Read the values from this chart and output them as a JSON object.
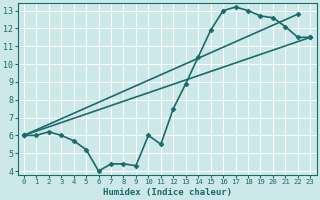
{
  "title": "",
  "xlabel": "Humidex (Indice chaleur)",
  "xlim": [
    -0.5,
    23.5
  ],
  "ylim": [
    3.8,
    13.4
  ],
  "yticks": [
    4,
    5,
    6,
    7,
    8,
    9,
    10,
    11,
    12,
    13
  ],
  "xticks": [
    0,
    1,
    2,
    3,
    4,
    5,
    6,
    7,
    8,
    9,
    10,
    11,
    12,
    13,
    14,
    15,
    16,
    17,
    18,
    19,
    20,
    21,
    22,
    23
  ],
  "bg_color": "#cce8e8",
  "line_color": "#1a6b6b",
  "grid_color": "#ffffff",
  "line1_x": [
    0,
    1,
    2,
    3,
    4,
    5,
    6,
    7,
    8,
    9,
    10,
    11,
    12,
    13,
    14,
    15,
    16,
    17,
    18,
    19,
    20,
    21,
    22,
    23
  ],
  "line1_y": [
    6.0,
    6.0,
    6.2,
    6.0,
    5.7,
    5.2,
    4.0,
    4.4,
    4.4,
    4.3,
    6.0,
    5.5,
    7.5,
    8.9,
    10.4,
    11.9,
    13.0,
    13.2,
    13.0,
    12.7,
    12.6,
    12.1,
    11.5,
    11.5
  ],
  "line2_x": [
    0,
    22
  ],
  "line2_y": [
    6.0,
    12.8
  ],
  "line3_x": [
    0,
    23
  ],
  "line3_y": [
    6.0,
    11.5
  ],
  "marker": "D",
  "markersize": 2.5,
  "linewidth": 1.2
}
